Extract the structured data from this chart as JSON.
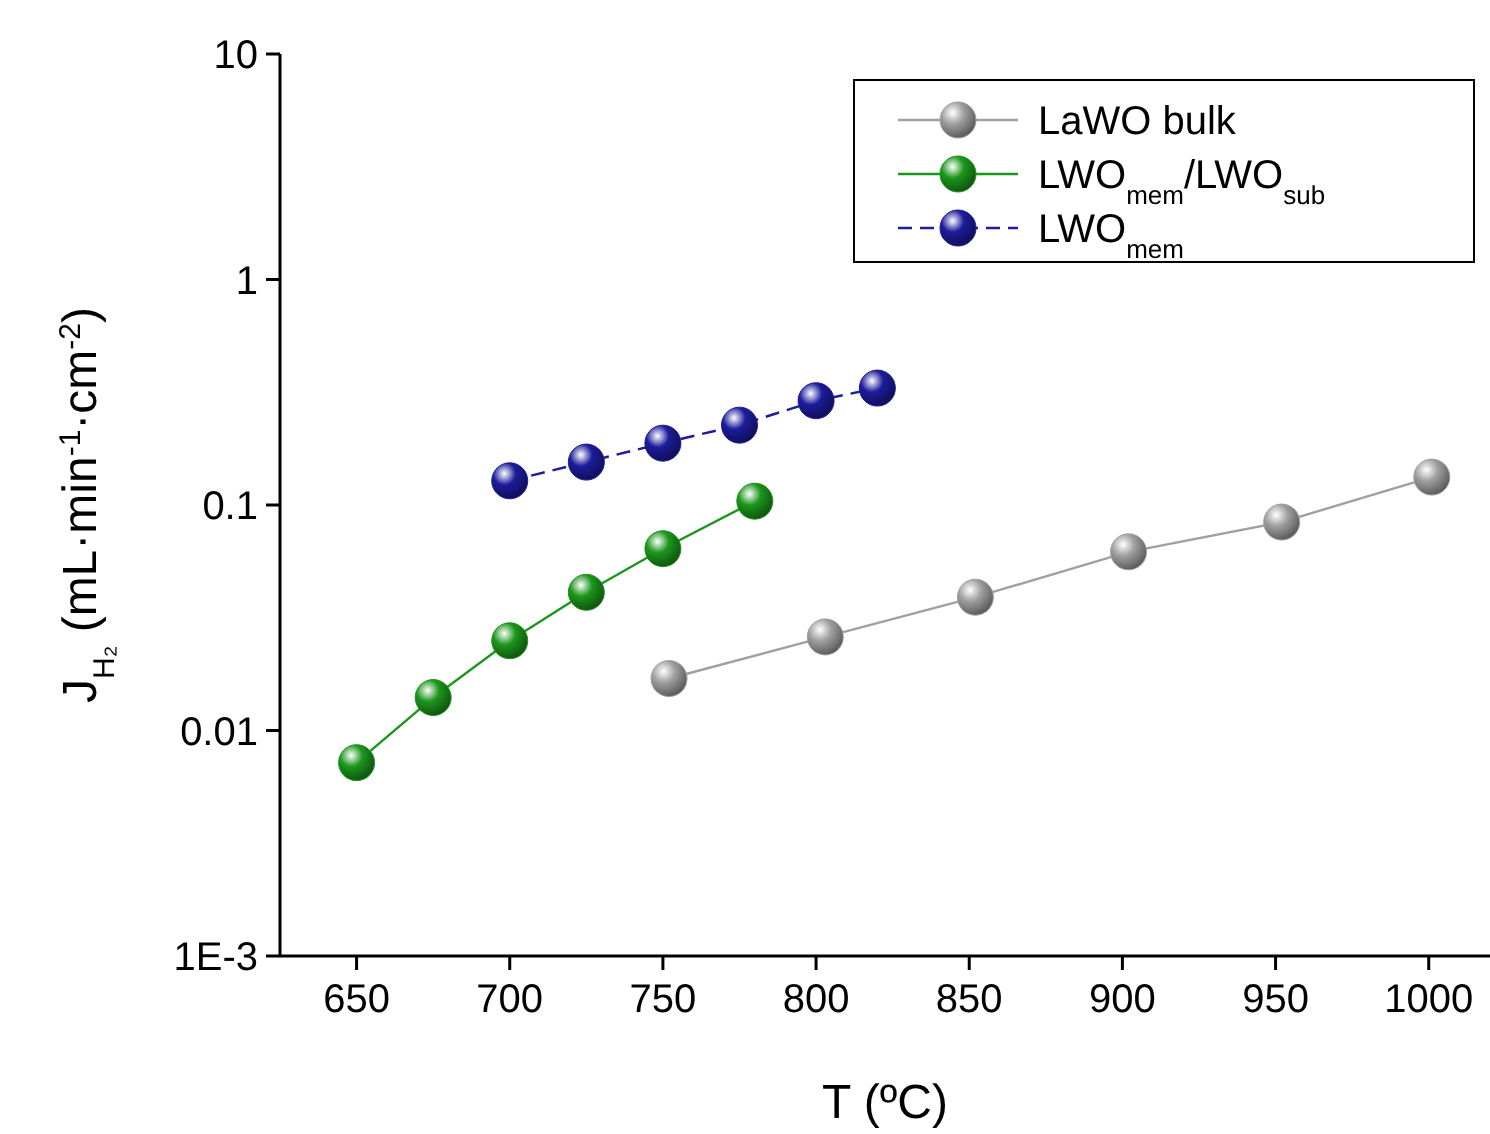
{
  "chart_data": {
    "type": "line",
    "xlabel": "T (ºC)",
    "ylabel": "J$_{H₂}$ (mL·min$^{-1}$·cm$^{-2}$)",
    "xlim": [
      625,
      1020
    ],
    "xticks": [
      650,
      700,
      750,
      800,
      850,
      900,
      950,
      1000
    ],
    "ylim": [
      0.001,
      10
    ],
    "yticks": [
      {
        "value": 0.001,
        "label": "1E-3"
      },
      0.01,
      0.1,
      1,
      10
    ],
    "log": "y",
    "grid": false,
    "legend": "top right",
    "marker": "circle",
    "series": [
      {
        "name": "LaWO bulk",
        "color": "#a0a0a0",
        "line_style": "solid",
        "x": [
          752,
          803,
          852,
          902,
          952,
          1001
        ],
        "values": [
          0.017,
          0.026,
          0.039,
          0.062,
          0.084,
          0.133
        ]
      },
      {
        "name": "LWO$_{mem}$/LWO$_{sub}$",
        "color": "#1c961c",
        "line_style": "solid",
        "x": [
          650,
          675,
          700,
          725,
          750,
          780
        ],
        "values": [
          0.0072,
          0.014,
          0.025,
          0.041,
          0.064,
          0.104
        ]
      },
      {
        "name": "LWO$_{mem}$",
        "color": "#1c1c9c",
        "line_style": "dashed",
        "x": [
          700,
          725,
          750,
          775,
          800,
          820
        ],
        "values": [
          0.128,
          0.155,
          0.188,
          0.226,
          0.29,
          0.33
        ]
      }
    ]
  }
}
